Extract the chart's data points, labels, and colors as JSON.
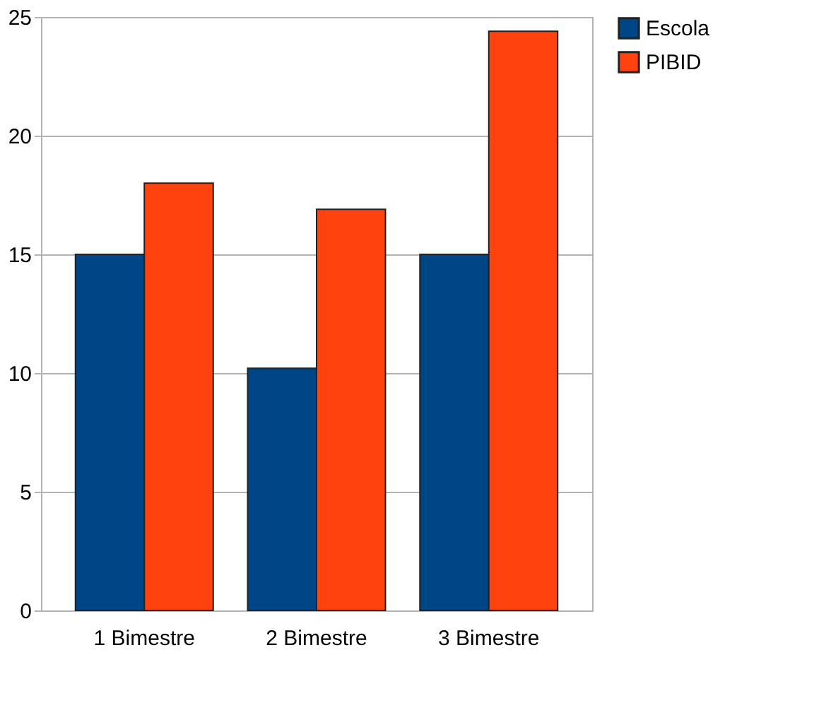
{
  "chart_data": {
    "type": "bar",
    "categories": [
      "1 Bimestre",
      "2 Bimestre",
      "3 Bimestre"
    ],
    "series": [
      {
        "name": "Escola",
        "color": "#004586",
        "values": [
          15,
          10.2,
          15
        ]
      },
      {
        "name": "PIBID",
        "color": "#ff420e",
        "values": [
          18,
          16.9,
          24.4
        ]
      }
    ],
    "ylim": [
      0,
      25
    ],
    "yticks": [
      0,
      5,
      10,
      15,
      20,
      25
    ],
    "grid": "y",
    "legend": "right"
  }
}
